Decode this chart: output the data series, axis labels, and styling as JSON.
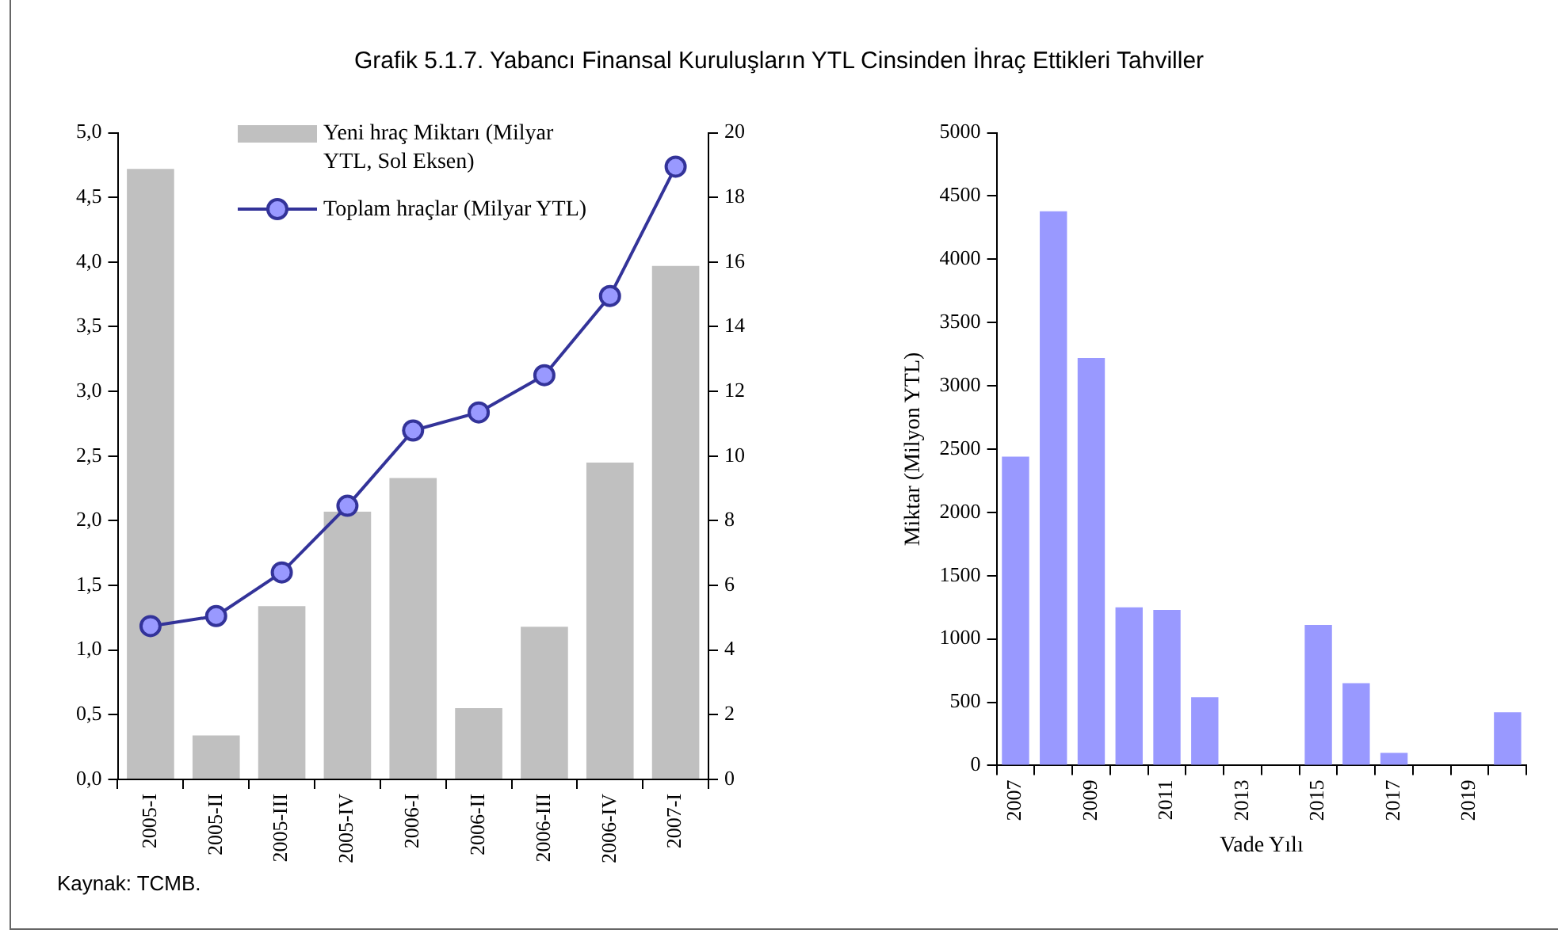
{
  "chart_data": [
    {
      "type": "bar",
      "title": "Grafik 5.1.7. Yabancı Finansal Kuruluşların YTL Cinsinden İhraç Ettikleri Tahviller",
      "categories": [
        "2005-I",
        "2005-II",
        "2005-III",
        "2005-IV",
        "2006-I",
        "2006-II",
        "2006-III",
        "2006-IV",
        "2007-I"
      ],
      "series": [
        {
          "name": "Yeni hraç Miktarı (Milyar YTL, Sol Eksen)",
          "type": "bar",
          "color": "#c0c0c0",
          "values": [
            4.72,
            0.34,
            1.34,
            2.07,
            2.33,
            0.55,
            1.18,
            2.45,
            3.97
          ]
        },
        {
          "name": "Toplam hraçlar (Milyar YTL)",
          "type": "line",
          "axis": "y2",
          "color": "#333399",
          "values": [
            4.74,
            5.05,
            6.4,
            8.46,
            10.79,
            11.35,
            12.5,
            14.95,
            18.95
          ]
        }
      ],
      "ylim": [
        0,
        5
      ],
      "yticks": [
        {
          "value": 0,
          "label": "0,0"
        },
        {
          "value": 0.5,
          "label": "0,5"
        },
        {
          "value": 1,
          "label": "1,0"
        },
        {
          "value": 1.5,
          "label": "1,5"
        },
        {
          "value": 2,
          "label": "2,0"
        },
        {
          "value": 2.5,
          "label": "2,5"
        },
        {
          "value": 3,
          "label": "3,0"
        },
        {
          "value": 3.5,
          "label": "3,5"
        },
        {
          "value": 4,
          "label": "4,0"
        },
        {
          "value": 4.5,
          "label": "4,5"
        },
        {
          "value": 5,
          "label": "5,0"
        }
      ],
      "y2lim": [
        0,
        20
      ],
      "y2ticks": [
        0,
        2,
        4,
        6,
        8,
        10,
        12,
        14,
        16,
        18,
        20
      ],
      "legend": "top",
      "marker": "circle",
      "grid": false,
      "annotations": [
        "Kaynak: TCMB."
      ]
    },
    {
      "type": "bar",
      "categories": [
        "2007",
        null,
        "2009",
        null,
        "2011",
        null,
        "2013",
        null,
        "2015",
        null,
        "2017",
        null,
        "2019",
        null
      ],
      "values": [
        2440,
        4380,
        3220,
        1250,
        1230,
        540,
        0,
        0,
        1110,
        650,
        100,
        0,
        0,
        420
      ],
      "color": "#9999ff",
      "ylim": [
        0,
        5000
      ],
      "yticks": [
        0,
        500,
        1000,
        1500,
        2000,
        2500,
        3000,
        3500,
        4000,
        4500,
        5000
      ],
      "xlabel": "Vade Yılı",
      "ylabel": "Miktar (Milyon YTL)",
      "grid": false
    }
  ]
}
